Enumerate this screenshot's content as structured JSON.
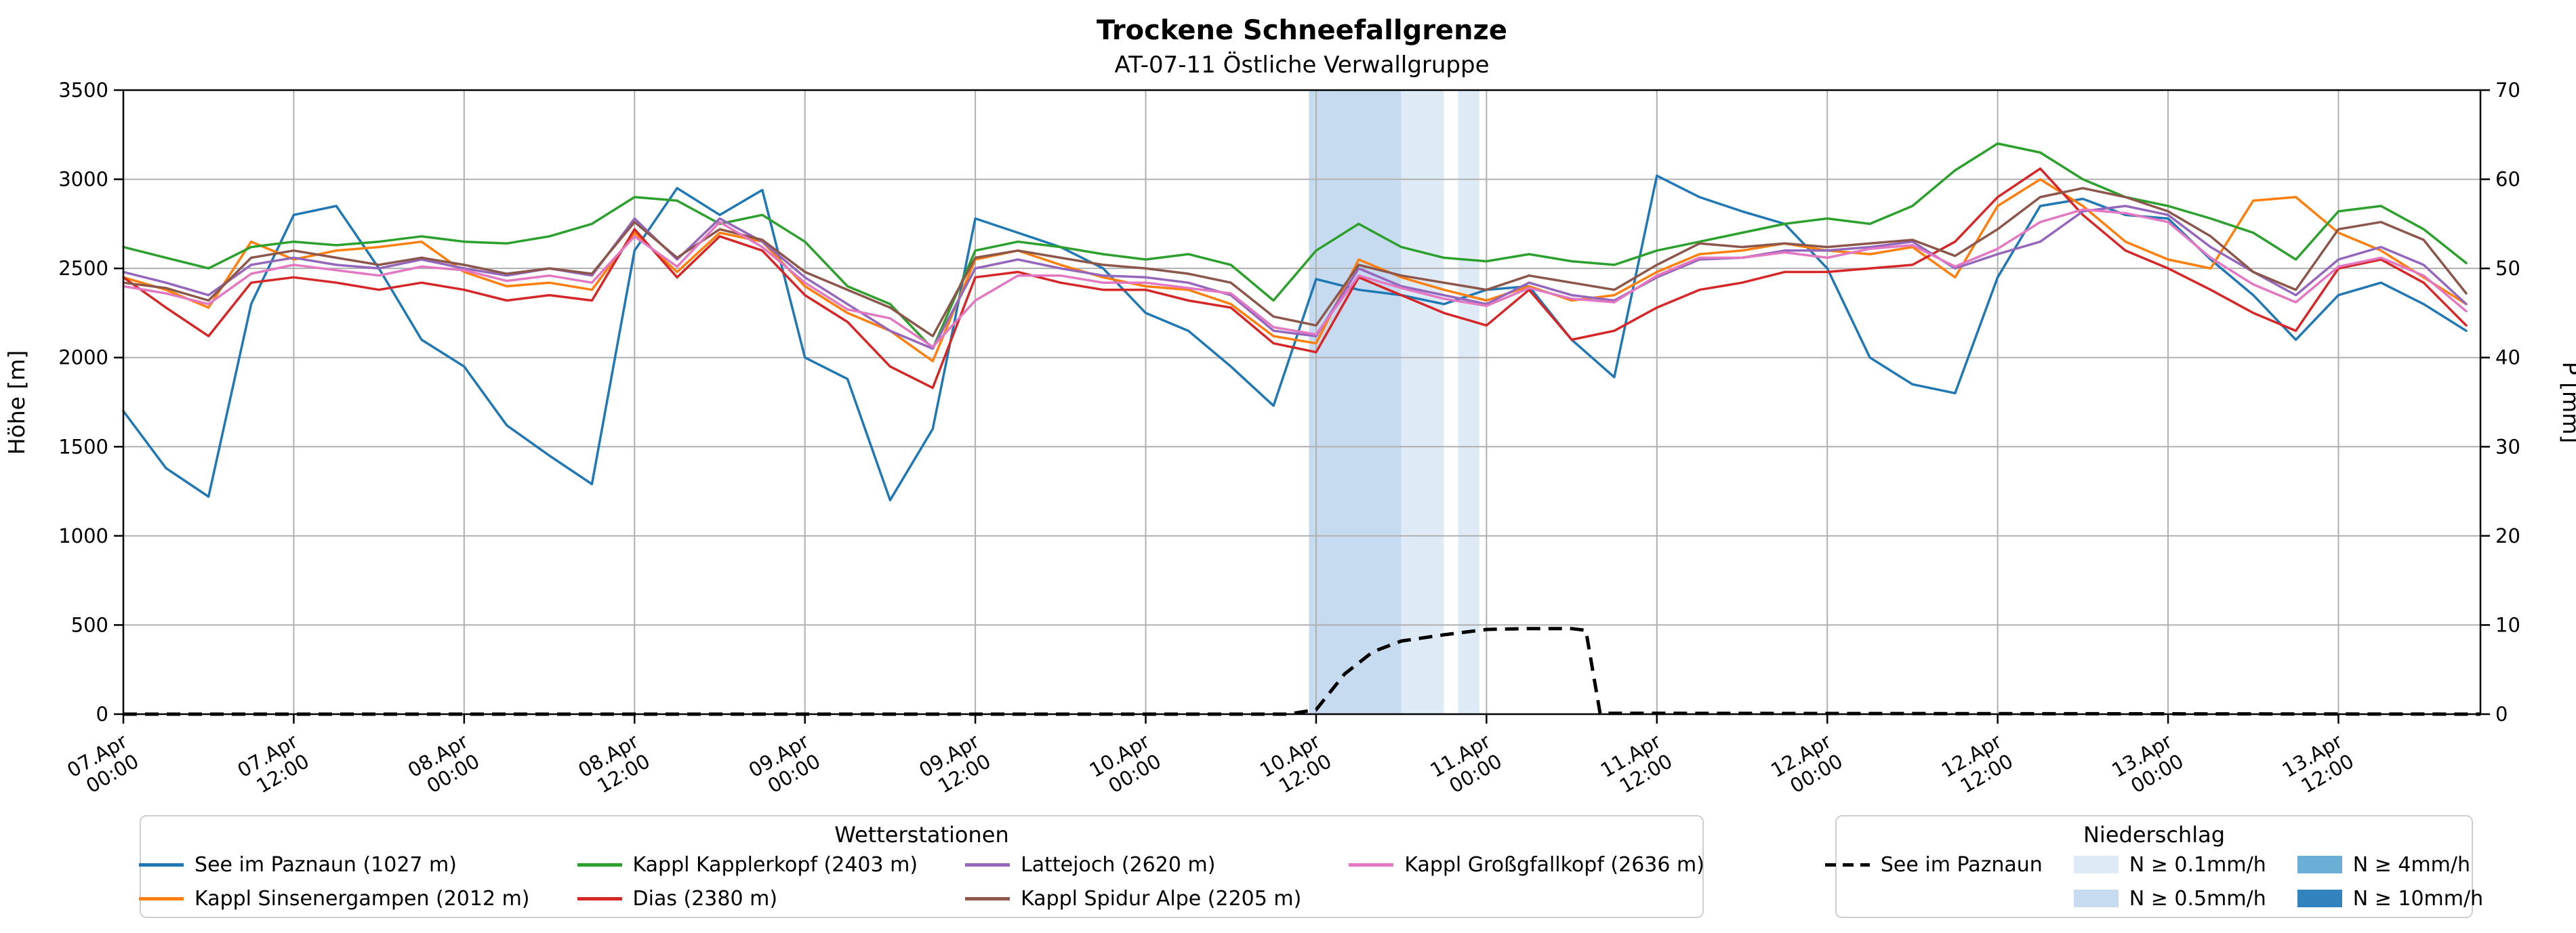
{
  "title": "Trockene Schneefallgrenze",
  "subtitle": "AT-07-11 Östliche Verwallgruppe",
  "axes": {
    "ylabel_left": "Höhe [m]",
    "ylabel_right": "P [mm]"
  },
  "legend_stations": {
    "title": "Wetterstationen"
  },
  "legend_precip": {
    "title": "Niederschlag",
    "line_label": "See im Paznaun",
    "levels": [
      {
        "label": "N ≥ 0.1mm/h",
        "color": "#deebf7"
      },
      {
        "label": "N ≥ 0.5mm/h",
        "color": "#c6dbef"
      },
      {
        "label": "N ≥ 4mm/h",
        "color": "#6baed6"
      },
      {
        "label": "N ≥ 10mm/h",
        "color": "#3182bd"
      }
    ]
  },
  "chart_data": {
    "type": "line",
    "title": "Trockene Schneefallgrenze",
    "subtitle": "AT-07-11 Östliche Verwallgruppe",
    "ylabel_left": "Höhe [m]",
    "ylabel_right": "P [mm]",
    "x_unit": "hours since 07.Apr 00:00",
    "x_start": 0,
    "x_step": 3,
    "x_range": [
      0,
      166
    ],
    "ylim_left": [
      0,
      3500
    ],
    "ylim_right": [
      0,
      70
    ],
    "grid": true,
    "yticks_left": [
      0,
      500,
      1000,
      1500,
      2000,
      2500,
      3000,
      3500
    ],
    "yticks_right": [
      0,
      10,
      20,
      30,
      40,
      50,
      60,
      70
    ],
    "xticks": [
      {
        "t": 0,
        "date": "07.Apr",
        "time": "00:00"
      },
      {
        "t": 12,
        "date": "07.Apr",
        "time": "12:00"
      },
      {
        "t": 24,
        "date": "08.Apr",
        "time": "00:00"
      },
      {
        "t": 36,
        "date": "08.Apr",
        "time": "12:00"
      },
      {
        "t": 48,
        "date": "09.Apr",
        "time": "00:00"
      },
      {
        "t": 60,
        "date": "09.Apr",
        "time": "12:00"
      },
      {
        "t": 72,
        "date": "10.Apr",
        "time": "00:00"
      },
      {
        "t": 84,
        "date": "10.Apr",
        "time": "12:00"
      },
      {
        "t": 96,
        "date": "11.Apr",
        "time": "00:00"
      },
      {
        "t": 108,
        "date": "11.Apr",
        "time": "12:00"
      },
      {
        "t": 120,
        "date": "12.Apr",
        "time": "00:00"
      },
      {
        "t": 132,
        "date": "12.Apr",
        "time": "12:00"
      },
      {
        "t": 144,
        "date": "13.Apr",
        "time": "00:00"
      },
      {
        "t": 156,
        "date": "13.Apr",
        "time": "12:00"
      }
    ],
    "series": [
      {
        "label": "See im Paznaun (1027 m)",
        "color": "#1f77b4",
        "axis": "left",
        "values": [
          1700,
          1380,
          1220,
          2300,
          2800,
          2850,
          2500,
          2100,
          1950,
          1620,
          1450,
          1290,
          2600,
          2950,
          2800,
          2940,
          2000,
          1880,
          1200,
          1600,
          2780,
          2700,
          2620,
          2500,
          2250,
          2150,
          1950,
          1730,
          2440,
          2380,
          2350,
          2300,
          2380,
          2400,
          2100,
          1890,
          3020,
          2900,
          2820,
          2750,
          2500,
          2000,
          1850,
          1800,
          2450,
          2850,
          2890,
          2800,
          2780,
          2550,
          2350,
          2100,
          2350,
          2420,
          2300,
          2150
        ]
      },
      {
        "label": "Kappl Sinsenergampen (2012 m)",
        "color": "#ff7f0e",
        "axis": "left",
        "values": [
          2450,
          2380,
          2280,
          2650,
          2550,
          2600,
          2620,
          2650,
          2480,
          2400,
          2420,
          2380,
          2700,
          2480,
          2700,
          2650,
          2400,
          2250,
          2150,
          1980,
          2550,
          2600,
          2520,
          2450,
          2400,
          2380,
          2300,
          2120,
          2080,
          2550,
          2450,
          2380,
          2320,
          2400,
          2320,
          2350,
          2480,
          2580,
          2600,
          2640,
          2600,
          2580,
          2620,
          2450,
          2850,
          3000,
          2850,
          2650,
          2550,
          2500,
          2880,
          2900,
          2700,
          2600,
          2450,
          2300
        ]
      },
      {
        "label": "Kappl Kapplerkopf (2403 m)",
        "color": "#2ca02c",
        "axis": "left",
        "values": [
          2620,
          2560,
          2500,
          2620,
          2650,
          2630,
          2650,
          2680,
          2650,
          2640,
          2680,
          2750,
          2900,
          2880,
          2750,
          2800,
          2650,
          2400,
          2300,
          2050,
          2600,
          2650,
          2620,
          2580,
          2550,
          2580,
          2520,
          2320,
          2600,
          2750,
          2620,
          2560,
          2540,
          2580,
          2540,
          2520,
          2600,
          2650,
          2700,
          2750,
          2780,
          2750,
          2850,
          3050,
          3200,
          3150,
          3000,
          2900,
          2850,
          2780,
          2700,
          2550,
          2820,
          2850,
          2720,
          2530
        ]
      },
      {
        "label": "Dias (2380 m)",
        "color": "#d62728",
        "axis": "left",
        "values": [
          2450,
          2280,
          2120,
          2420,
          2450,
          2420,
          2380,
          2420,
          2380,
          2320,
          2350,
          2320,
          2720,
          2450,
          2680,
          2600,
          2350,
          2200,
          1950,
          1830,
          2450,
          2480,
          2420,
          2380,
          2380,
          2320,
          2280,
          2080,
          2030,
          2450,
          2350,
          2250,
          2180,
          2380,
          2100,
          2150,
          2280,
          2380,
          2420,
          2480,
          2480,
          2500,
          2520,
          2650,
          2900,
          3060,
          2800,
          2600,
          2500,
          2380,
          2250,
          2150,
          2500,
          2550,
          2420,
          2180
        ]
      },
      {
        "label": "Lattejoch (2620 m)",
        "color": "#9467bd",
        "axis": "left",
        "values": [
          2480,
          2420,
          2350,
          2520,
          2560,
          2520,
          2500,
          2550,
          2500,
          2460,
          2500,
          2460,
          2780,
          2550,
          2780,
          2650,
          2450,
          2300,
          2150,
          2050,
          2500,
          2550,
          2500,
          2460,
          2450,
          2420,
          2350,
          2150,
          2120,
          2500,
          2400,
          2350,
          2300,
          2420,
          2350,
          2320,
          2450,
          2550,
          2560,
          2600,
          2600,
          2620,
          2650,
          2500,
          2580,
          2650,
          2820,
          2850,
          2800,
          2620,
          2480,
          2350,
          2550,
          2620,
          2520,
          2300
        ]
      },
      {
        "label": "Kappl Spidur Alpe (2205 m)",
        "color": "#8c564b",
        "axis": "left",
        "values": [
          2420,
          2390,
          2320,
          2560,
          2600,
          2560,
          2520,
          2560,
          2520,
          2470,
          2500,
          2470,
          2760,
          2560,
          2720,
          2660,
          2480,
          2380,
          2280,
          2120,
          2560,
          2600,
          2560,
          2520,
          2500,
          2470,
          2420,
          2230,
          2180,
          2520,
          2460,
          2420,
          2380,
          2460,
          2420,
          2380,
          2520,
          2640,
          2620,
          2640,
          2620,
          2640,
          2660,
          2570,
          2720,
          2900,
          2950,
          2900,
          2820,
          2680,
          2480,
          2380,
          2720,
          2760,
          2660,
          2360
        ]
      },
      {
        "label": "Kappl Großgfallkopf (2636 m)",
        "color": "#e377c2",
        "axis": "left",
        "values": [
          2400,
          2360,
          2300,
          2470,
          2520,
          2490,
          2460,
          2510,
          2490,
          2430,
          2460,
          2420,
          2680,
          2510,
          2760,
          2620,
          2420,
          2270,
          2220,
          2060,
          2320,
          2460,
          2460,
          2420,
          2420,
          2390,
          2360,
          2170,
          2130,
          2460,
          2390,
          2330,
          2290,
          2390,
          2330,
          2310,
          2460,
          2560,
          2560,
          2590,
          2560,
          2610,
          2630,
          2510,
          2610,
          2760,
          2830,
          2810,
          2760,
          2560,
          2410,
          2310,
          2510,
          2560,
          2460,
          2260
        ]
      }
    ],
    "precip_line": {
      "label": "See im Paznaun",
      "axis": "right",
      "style": "dashed",
      "color": "#000000",
      "x": [
        0,
        82,
        84,
        86,
        88,
        90,
        93,
        96,
        99,
        102,
        103,
        104,
        166
      ],
      "values": [
        0,
        0,
        0.5,
        4.5,
        7.0,
        8.2,
        8.9,
        9.5,
        9.6,
        9.6,
        9.4,
        0.1,
        0
      ]
    },
    "precip_bands": [
      {
        "from_h": 83.5,
        "to_h": 90,
        "level": "N ≥ 0.5mm/h",
        "color": "#c6dbef"
      },
      {
        "from_h": 90,
        "to_h": 93,
        "level": "N ≥ 0.1mm/h",
        "color": "#deebf7"
      },
      {
        "from_h": 94,
        "to_h": 95.5,
        "level": "N ≥ 0.1mm/h",
        "color": "#deebf7"
      }
    ]
  }
}
